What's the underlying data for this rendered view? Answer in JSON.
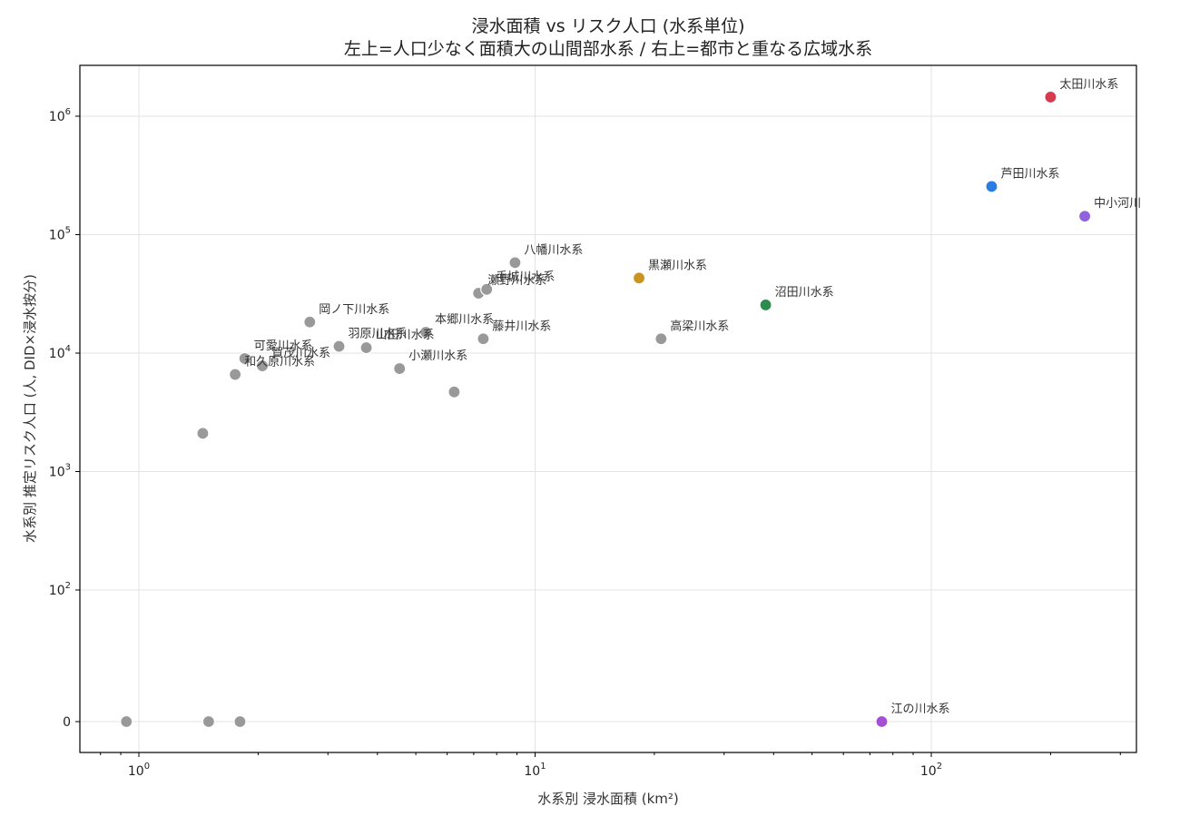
{
  "chart_data": {
    "type": "scatter",
    "title": "浸水面積 vs リスク人口 (水系単位)",
    "subtitle": "左上=人口少なく面積大の山間部水系 / 右上=都市と重なる広域水系",
    "xlabel": "水系別 浸水面積 (km²)",
    "ylabel": "水系別 推定リスク人口 (人, DID×浸水按分)",
    "xscale": "log",
    "yscale": "symlog",
    "grid": true,
    "x_ticks": [
      {
        "value": 1,
        "base": "10",
        "exp": "0"
      },
      {
        "value": 10,
        "base": "10",
        "exp": "1"
      },
      {
        "value": 100,
        "base": "10",
        "exp": "2"
      }
    ],
    "y_ticks": [
      {
        "value": 0,
        "base": "0",
        "exp": ""
      },
      {
        "value": 100,
        "base": "10",
        "exp": "2"
      },
      {
        "value": 1000,
        "base": "10",
        "exp": "3"
      },
      {
        "value": 10000,
        "base": "10",
        "exp": "4"
      },
      {
        "value": 100000,
        "base": "10",
        "exp": "5"
      },
      {
        "value": 1000000,
        "base": "10",
        "exp": "6"
      }
    ],
    "points": [
      {
        "label": "太田川水系",
        "x": 200,
        "y": 1450000,
        "color": "#d63b4d"
      },
      {
        "label": "芦田川水系",
        "x": 142,
        "y": 255000,
        "color": "#2a7de1"
      },
      {
        "label": "中小河川",
        "x": 244,
        "y": 143000,
        "color": "#9161e0"
      },
      {
        "label": "黒瀬川水系",
        "x": 18.3,
        "y": 43000,
        "color": "#c9951e"
      },
      {
        "label": "沼田川水系",
        "x": 38.2,
        "y": 25500,
        "color": "#2e8b4e"
      },
      {
        "label": "江の川水系",
        "x": 75,
        "y": 0,
        "color": "#a64fd4"
      },
      {
        "label": "八幡川水系",
        "x": 8.9,
        "y": 58000,
        "color": "#999999"
      },
      {
        "label": "瀬野川水系",
        "x": 7.2,
        "y": 32000,
        "color": "#999999"
      },
      {
        "label": "手城川水系",
        "x": 7.55,
        "y": 34500,
        "color": "#999999"
      },
      {
        "label": "岡ノ下川水系",
        "x": 2.7,
        "y": 18300,
        "color": "#999999"
      },
      {
        "label": "本郷川水系",
        "x": 5.3,
        "y": 15000,
        "color": "#999999"
      },
      {
        "label": "藤井川水系",
        "x": 7.4,
        "y": 13200,
        "color": "#999999"
      },
      {
        "label": "高梁川水系",
        "x": 20.8,
        "y": 13200,
        "color": "#999999"
      },
      {
        "label": "羽原川水系",
        "x": 3.2,
        "y": 11400,
        "color": "#999999"
      },
      {
        "label": "山田川水系",
        "x": 3.75,
        "y": 11100,
        "color": "#999999"
      },
      {
        "label": "可愛川水系",
        "x": 1.85,
        "y": 9000,
        "color": "#999999"
      },
      {
        "label": "賀茂川水系",
        "x": 2.05,
        "y": 7800,
        "color": "#999999"
      },
      {
        "label": "和久原川水系",
        "x": 1.75,
        "y": 6600,
        "color": "#999999"
      },
      {
        "label": "小瀬川水系",
        "x": 4.55,
        "y": 7400,
        "color": "#999999"
      },
      {
        "label": "",
        "x": 6.25,
        "y": 4700,
        "color": "#999999"
      },
      {
        "label": "",
        "x": 1.45,
        "y": 2100,
        "color": "#999999"
      },
      {
        "label": "",
        "x": 0.93,
        "y": 0,
        "color": "#999999"
      },
      {
        "label": "",
        "x": 1.5,
        "y": 0,
        "color": "#999999"
      },
      {
        "label": "",
        "x": 1.8,
        "y": 0,
        "color": "#999999"
      }
    ]
  }
}
